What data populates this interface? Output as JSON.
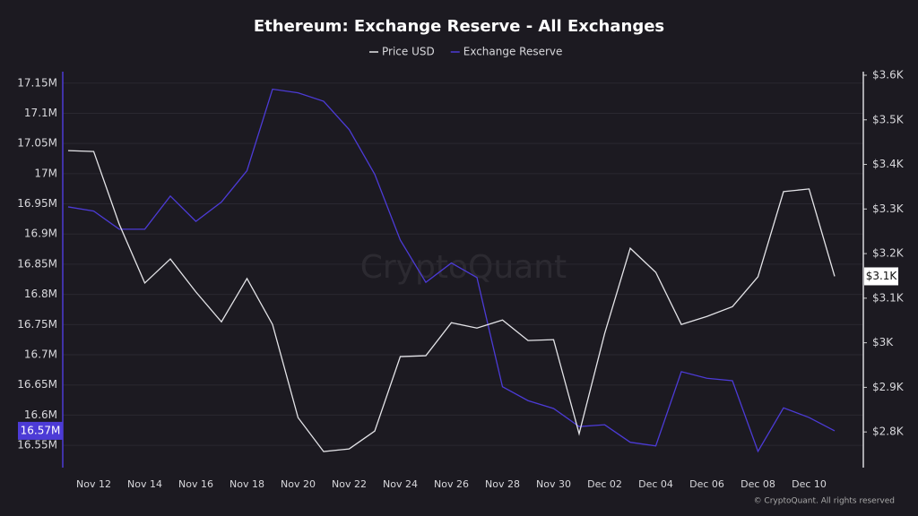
{
  "chart_data": {
    "type": "line",
    "title": "Ethereum: Exchange Reserve - All Exchanges",
    "watermark": "CryptoQuant",
    "footer": "© CryptoQuant. All rights reserved",
    "categories": [
      null,
      "Nov 12",
      null,
      "Nov 14",
      null,
      "Nov 16",
      null,
      "Nov 18",
      null,
      "Nov 20",
      null,
      "Nov 22",
      null,
      "Nov 24",
      null,
      "Nov 26",
      null,
      "Nov 28",
      null,
      "Nov 30",
      null,
      "Dec 02",
      null,
      "Dec 04",
      null,
      "Dec 06",
      null,
      "Dec 08",
      null,
      "Dec 10",
      null
    ],
    "series": [
      {
        "name": "Price USD",
        "color": "#e4e4e8",
        "axis": "y2",
        "last_label": "$3.1K",
        "values": [
          3431,
          3429,
          3266,
          3134,
          3188,
          3114,
          3047,
          3144,
          3041,
          2832,
          2756,
          2762,
          2802,
          2969,
          2971,
          3045,
          3033,
          3051,
          3005,
          3007,
          2796,
          3021,
          3212,
          3158,
          3041,
          3059,
          3081,
          3148,
          3339,
          3345,
          3149
        ]
      },
      {
        "name": "Exchange Reserve",
        "color": "#4c3bd6",
        "last_label": "16.57M",
        "values": [
          16945000,
          16938000,
          16908000,
          16908000,
          16963000,
          16921000,
          16953000,
          17005000,
          17140000,
          17134000,
          17120000,
          17073000,
          16999000,
          16890000,
          16820000,
          16852000,
          16828000,
          16647000,
          16624000,
          16611000,
          16581000,
          16584000,
          16555000,
          16549000,
          16672000,
          16661000,
          16657000,
          16540000,
          16612000,
          16596000,
          16574000
        ]
      }
    ],
    "ylim": [
      16513000,
      17169000
    ],
    "yticks": [
      {
        "value": 16550000,
        "label": "16.55M"
      },
      {
        "value": 16600000,
        "label": "16.6M"
      },
      {
        "value": 16650000,
        "label": "16.65M"
      },
      {
        "value": 16700000,
        "label": "16.7M"
      },
      {
        "value": 16750000,
        "label": "16.75M"
      },
      {
        "value": 16800000,
        "label": "16.8M"
      },
      {
        "value": 16850000,
        "label": "16.85M"
      },
      {
        "value": 16900000,
        "label": "16.9M"
      },
      {
        "value": 16950000,
        "label": "16.95M"
      },
      {
        "value": 17000000,
        "label": "17M"
      },
      {
        "value": 17050000,
        "label": "17.05M"
      },
      {
        "value": 17100000,
        "label": "17.1M"
      },
      {
        "value": 17150000,
        "label": "17.15M"
      }
    ],
    "y2lim": [
      2720,
      3608
    ],
    "y2ticks": [
      {
        "value": 2800,
        "label": "$2.8K"
      },
      {
        "value": 2900,
        "label": "$2.9K"
      },
      {
        "value": 3000,
        "label": "$3K"
      },
      {
        "value": 3100,
        "label": "$3.1K"
      },
      {
        "value": 3200,
        "label": "$3.2K"
      },
      {
        "value": 3300,
        "label": "$3.3K"
      },
      {
        "value": 3400,
        "label": "$3.4K"
      },
      {
        "value": 3500,
        "label": "$3.5K"
      },
      {
        "value": 3600,
        "label": "$3.6K"
      }
    ],
    "grid": true
  }
}
